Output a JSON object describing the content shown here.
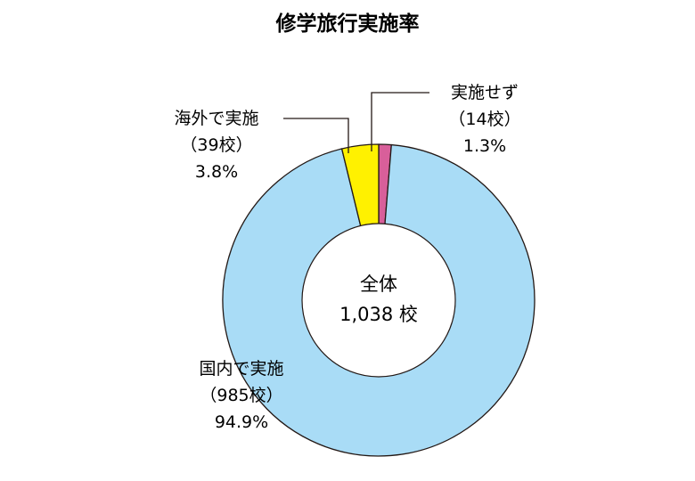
{
  "chart_data": {
    "type": "pie",
    "title": "修学旅行実施率",
    "center_label": [
      "全体",
      "1,038 校"
    ],
    "slices": [
      {
        "label": "実施せず",
        "count": "（14校）",
        "percent_text": "1.3%",
        "value": 1.3,
        "color": "#d85f9a"
      },
      {
        "label": "国内で実施",
        "count": "（985校）",
        "percent_text": "94.9%",
        "value": 94.9,
        "color": "#a9dcf6"
      },
      {
        "label": "海外で実施",
        "count": "（39校）",
        "percent_text": "3.8%",
        "value": 3.8,
        "color": "#fff100"
      }
    ]
  }
}
